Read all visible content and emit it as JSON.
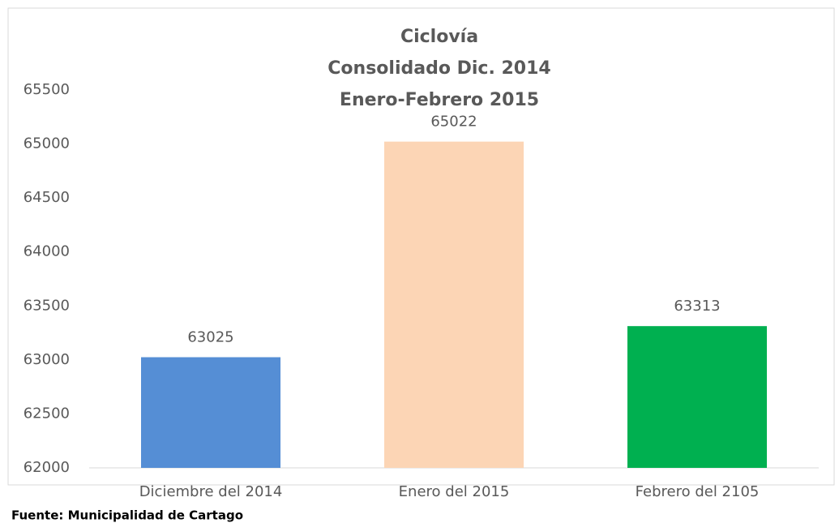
{
  "chart_data": {
    "type": "bar",
    "title": [
      "Ciclovía",
      "Consolidado  Dic. 2014",
      "Enero-Febrero 2015"
    ],
    "categories": [
      "Diciembre  del 2014",
      "Enero del 2015",
      "Febrero del 2105"
    ],
    "values": [
      63025,
      65022,
      63313
    ],
    "colors": [
      "#558ed5",
      "#fcd5b5",
      "#00b050"
    ],
    "ylim": [
      62000,
      65500
    ],
    "yticks": [
      62000,
      62500,
      63000,
      63500,
      64000,
      64500,
      65000,
      65500
    ],
    "grid": false,
    "source": "Fuente: Municipalidad de Cartago"
  }
}
